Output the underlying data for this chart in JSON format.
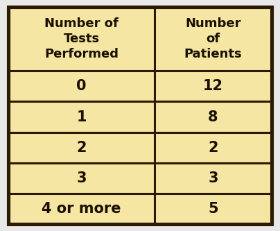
{
  "col_headers": [
    "Number of\nTests\nPerformed",
    "Number\nof\nPatients"
  ],
  "rows": [
    [
      "0",
      "12"
    ],
    [
      "1",
      "8"
    ],
    [
      "2",
      "2"
    ],
    [
      "3",
      "3"
    ],
    [
      "4 or more",
      "5"
    ]
  ],
  "bg_color": "#F5E6A3",
  "border_color": "#2B1A00",
  "text_color": "#1A1000",
  "outer_bg": "#E8E8E8",
  "header_fontsize": 13,
  "cell_fontsize": 15,
  "figsize": [
    4.04,
    3.33
  ],
  "dpi": 100
}
